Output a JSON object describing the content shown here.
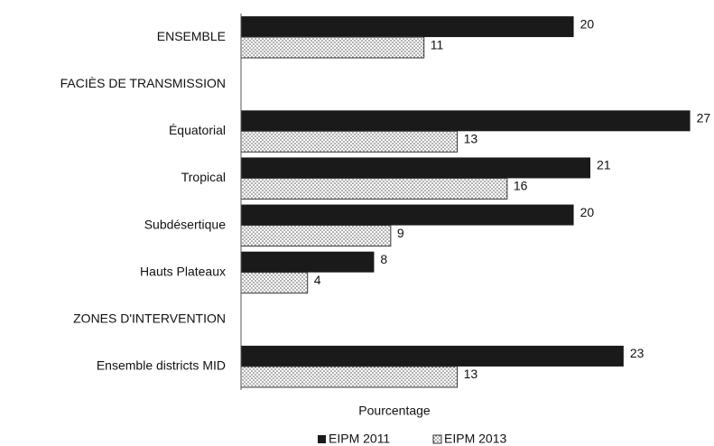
{
  "chart_data": {
    "type": "hbar",
    "x_label": "Pourcentage",
    "categories": [
      "ENSEMBLE",
      "FACIÈS DE TRANSMISSION",
      "Équatorial",
      "Tropical",
      "Subdésertique",
      "Hauts Plateaux",
      "ZONES D'INTERVENTION",
      "Ensemble districts MID"
    ],
    "series": [
      {
        "name": "EIPM 2011",
        "color": "#1a1a1a",
        "values": [
          20,
          null,
          27,
          21,
          20,
          8,
          null,
          23
        ]
      },
      {
        "name": "EIPM 2013",
        "color": "#ffffff",
        "pattern": "dots",
        "values": [
          11,
          null,
          13,
          16,
          9,
          4,
          null,
          13
        ]
      }
    ],
    "xlim": [
      0,
      28
    ],
    "legend": "bottom"
  }
}
